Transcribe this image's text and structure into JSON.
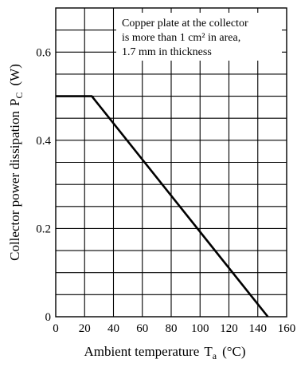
{
  "chart_data": {
    "type": "line",
    "title": "",
    "xlabel": "Ambient temperature",
    "xlabel_symbol": "T",
    "xlabel_sub": "a",
    "xlabel_unit": "(°C)",
    "ylabel": "Collector power dissipation",
    "ylabel_symbol": "P",
    "ylabel_sub": "C",
    "ylabel_unit": "(W)",
    "xlim": [
      0,
      160
    ],
    "ylim": [
      0,
      0.7
    ],
    "grid": true,
    "xticks": [
      0,
      20,
      40,
      60,
      80,
      100,
      120,
      140,
      160
    ],
    "xtick_labels": [
      "0",
      "20",
      "40",
      "60",
      "80",
      "100",
      "120",
      "140",
      "160"
    ],
    "yticks": [
      0,
      0.2,
      0.4,
      0.6
    ],
    "ytick_labels": [
      "0",
      "0.2",
      "0.4",
      "0.6"
    ],
    "series": [
      {
        "points": [
          [
            0,
            0.5
          ],
          [
            25,
            0.5
          ],
          [
            147,
            0
          ]
        ]
      }
    ],
    "annotation": {
      "lines": [
        "Copper plate at the collector",
        "is more than 1 cm² in area,",
        "1.7 mm in thickness"
      ]
    }
  }
}
